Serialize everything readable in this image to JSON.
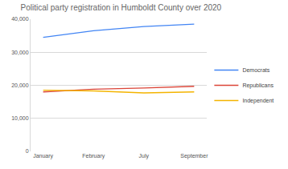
{
  "chart_data": {
    "type": "line",
    "title": "Political party registration in Humboldt County over 2020",
    "categories": [
      "January",
      "February",
      "July",
      "September"
    ],
    "series": [
      {
        "name": "Democrats",
        "color": "#4285f4",
        "values": [
          34500,
          36500,
          37800,
          38500
        ]
      },
      {
        "name": "Republicans",
        "color": "#db4437",
        "values": [
          18000,
          18800,
          19200,
          19700
        ]
      },
      {
        "name": "Independent",
        "color": "#f4b400",
        "values": [
          18500,
          18300,
          17700,
          18000
        ]
      }
    ],
    "ylim": [
      0,
      40000
    ],
    "yticks": [
      0,
      {
        "value": 10000,
        "label": "10,000"
      },
      {
        "value": 20000,
        "label": "20,000"
      },
      {
        "value": 30000,
        "label": "30,000"
      },
      {
        "value": 40000,
        "label": "40,000"
      }
    ],
    "grid": true,
    "legend": "right"
  }
}
